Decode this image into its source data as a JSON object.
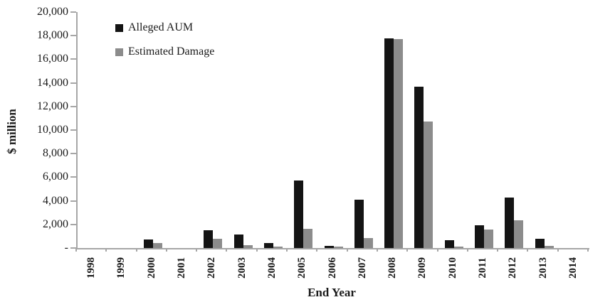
{
  "chart_data": {
    "type": "bar",
    "title": "",
    "xlabel": "End Year",
    "ylabel": "$ million",
    "ylim": [
      0,
      20000
    ],
    "y_tick_interval": 2000,
    "y_tick_labels": [
      "20,000",
      "18,000",
      "16,000",
      "14,000",
      "12,000",
      "10,000",
      "8,000",
      "6,000",
      "4,000",
      "2,000",
      "-"
    ],
    "categories": [
      "1998",
      "1999",
      "2000",
      "2001",
      "2002",
      "2003",
      "2004",
      "2005",
      "2006",
      "2007",
      "2008",
      "2009",
      "2010",
      "2011",
      "2012",
      "2013",
      "2014"
    ],
    "series": [
      {
        "name": "Alleged AUM",
        "color": "#141414",
        "values": [
          0,
          0,
          700,
          0,
          1500,
          1150,
          450,
          5750,
          200,
          4100,
          17800,
          13650,
          650,
          1900,
          4300,
          780,
          0
        ]
      },
      {
        "name": "Estimated Damage",
        "color": "#8c8c8c",
        "values": [
          0,
          0,
          450,
          0,
          800,
          250,
          150,
          1600,
          120,
          850,
          17700,
          10750,
          150,
          1550,
          2350,
          200,
          0
        ]
      }
    ],
    "legend_position": "top-left-inside",
    "grid": false,
    "axis_color": "#a6a6a6"
  }
}
